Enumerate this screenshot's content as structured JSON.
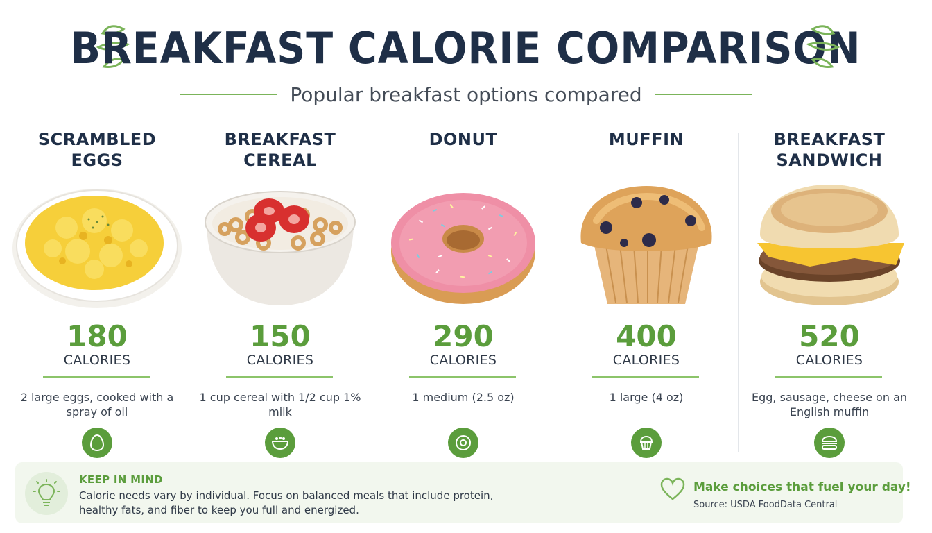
{
  "header": {
    "title": "BREAKFAST CALORIE COMPARISON",
    "subtitle": "Popular breakfast options compared"
  },
  "foods": [
    {
      "name_line1": "SCRAMBLED",
      "name_line2": "EGGS",
      "calories": "180",
      "calories_label": "CALORIES",
      "serving": "2 large eggs, cooked with a spray of oil",
      "image": "scrambled-eggs-bowl",
      "icon": "egg-icon"
    },
    {
      "name_line1": "BREAKFAST",
      "name_line2": "CEREAL",
      "calories": "150",
      "calories_label": "CALORIES",
      "serving": "1 cup cereal with 1/2 cup 1% milk",
      "image": "cereal-bowl-with-strawberries",
      "icon": "bowl-icon"
    },
    {
      "name_line1": "DONUT",
      "name_line2": "",
      "calories": "290",
      "calories_label": "CALORIES",
      "serving": "1 medium (2.5 oz)",
      "image": "pink-frosted-donut",
      "icon": "donut-icon"
    },
    {
      "name_line1": "MUFFIN",
      "name_line2": "",
      "calories": "400",
      "calories_label": "CALORIES",
      "serving": "1 large (4 oz)",
      "image": "blueberry-muffin",
      "icon": "muffin-icon"
    },
    {
      "name_line1": "BREAKFAST",
      "name_line2": "SANDWICH",
      "calories": "520",
      "calories_label": "CALORIES",
      "serving": "Egg, sausage, cheese on an English muffin",
      "image": "breakfast-sandwich",
      "icon": "sandwich-icon"
    }
  ],
  "footer": {
    "keep_title": "KEEP IN MIND",
    "keep_text": "Calorie needs vary by individual. Focus on balanced meals that include protein, healthy fats, and fiber to keep you full and energized.",
    "tagline": "Make choices that fuel your day!",
    "source": "Source: USDA FoodData Central"
  },
  "colors": {
    "navy": "#1f2f47",
    "green": "#5b9d3c",
    "light_green": "#8cc46a",
    "footer_bg": "#f2f7ee"
  }
}
